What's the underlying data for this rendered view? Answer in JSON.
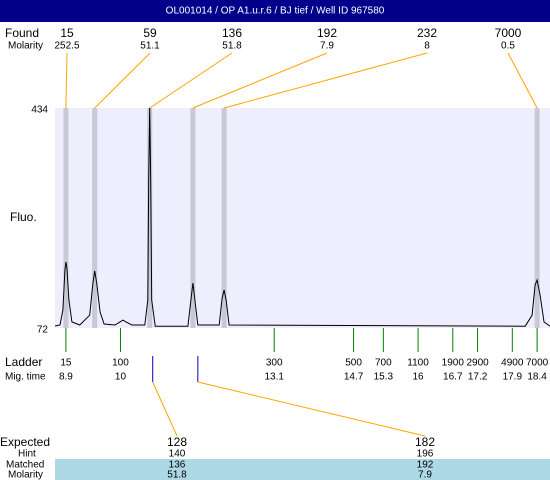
{
  "title": "OL001014 / OP A1.u.r.6 / BJ tief / Well ID 967580",
  "chart_data": {
    "type": "electropherogram",
    "xlim": [
      8.68,
      18.66
    ],
    "ylim": [
      72,
      434
    ],
    "yticks": [
      434,
      72
    ],
    "y_label": "Fluo.",
    "found": {
      "label": "Found",
      "molarity_label": "Molarity",
      "sizes": [
        15,
        59,
        136,
        192,
        232,
        7000
      ],
      "molarity": [
        252.5,
        51.1,
        51.8,
        7.9,
        8,
        0.5
      ],
      "x": [
        8.9,
        9.48,
        10.59,
        11.46,
        12.09,
        18.4
      ]
    },
    "ladder": {
      "label": "Ladder",
      "time_label": "Mig. time",
      "sizes": [
        15,
        100,
        300,
        500,
        700,
        1100,
        1900,
        2900,
        4900,
        7000
      ],
      "times": [
        8.9,
        10,
        13.1,
        14.7,
        15.3,
        16,
        16.7,
        17.2,
        17.9,
        18.4
      ]
    },
    "trace": {
      "color": "#000000",
      "x": [
        8.68,
        8.78,
        8.84,
        8.88,
        8.9,
        8.92,
        8.96,
        9.02,
        9.18,
        9.38,
        9.44,
        9.48,
        9.52,
        9.59,
        9.67,
        9.89,
        9.99,
        10.05,
        10.11,
        10.23,
        10.49,
        10.55,
        10.57,
        10.59,
        10.61,
        10.63,
        10.7,
        11.36,
        11.42,
        11.46,
        11.5,
        11.56,
        11.99,
        12.05,
        12.09,
        12.13,
        12.19,
        18.16,
        18.3,
        18.36,
        18.4,
        18.46,
        18.54,
        18.66
      ],
      "y": [
        75.3,
        77,
        101.6,
        167,
        180.6,
        171,
        118,
        82,
        77,
        93,
        143,
        166,
        146,
        98,
        78.6,
        77,
        82,
        85,
        82,
        77,
        77,
        118,
        315,
        434,
        315,
        118,
        75,
        75,
        118,
        146,
        118,
        77,
        77,
        121,
        134.5,
        118,
        77,
        75,
        93,
        143,
        151,
        126,
        82,
        75
      ]
    },
    "expected": {
      "label": "Expected",
      "hint_label": "Hint",
      "matched_label": "Matched",
      "molarity_label": "Molarity",
      "sizes": [
        128,
        182
      ],
      "hint": [
        140,
        196
      ],
      "matched": [
        136,
        192
      ],
      "molarity": [
        51.8,
        7.9
      ],
      "x": [
        10.65,
        11.56
      ]
    }
  }
}
